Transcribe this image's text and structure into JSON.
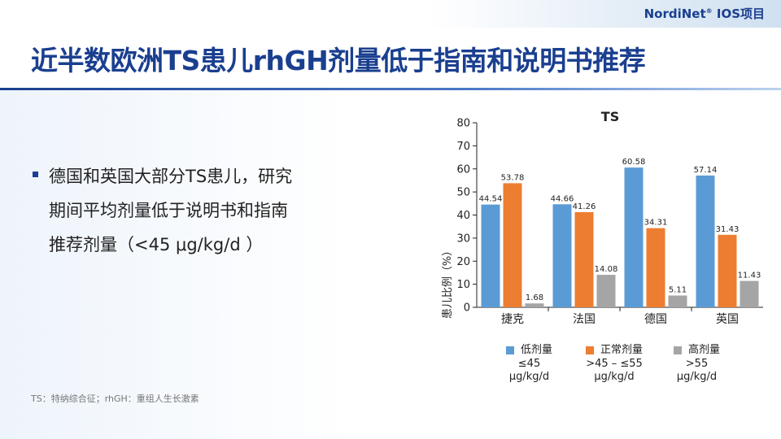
{
  "header": {
    "brand": "NordiNet",
    "brand_reg": "®",
    "brand_suffix": " IOS项目"
  },
  "slide": {
    "title": "近半数欧洲TS患儿rhGH剂量低于指南和说明书推荐",
    "bullet_lines": [
      "德国和英国大部分TS患儿，研究",
      "期间平均剂量低于说明书和指南",
      "推荐剂量（<45 μg/kg/d ）"
    ],
    "footnote": "TS：特纳综合征；rhGH：重组人生长激素"
  },
  "chart_data": {
    "type": "bar",
    "title": "TS",
    "ylabel": "患儿比例（%）",
    "xlabel": "",
    "ylim": [
      0,
      80
    ],
    "yticks": [
      0,
      10,
      20,
      30,
      40,
      50,
      60,
      70,
      80
    ],
    "grid": false,
    "legend_position": "bottom",
    "categories": [
      "捷克",
      "法国",
      "德国",
      "英国"
    ],
    "series": [
      {
        "name": "低剂量",
        "range_label": "≤45",
        "unit_label": "μg/kg/d",
        "color": "#5b9bd5",
        "values": [
          44.54,
          44.66,
          60.58,
          57.14
        ]
      },
      {
        "name": "正常剂量",
        "range_label": ">45 – ≤55",
        "unit_label": "μg/kg/d",
        "color": "#ed7d31",
        "values": [
          53.78,
          41.26,
          34.31,
          31.43
        ]
      },
      {
        "name": "高剂量",
        "range_label": ">55",
        "unit_label": "μg/kg/d",
        "color": "#a5a5a5",
        "values": [
          1.68,
          14.08,
          5.11,
          11.43
        ]
      }
    ]
  }
}
